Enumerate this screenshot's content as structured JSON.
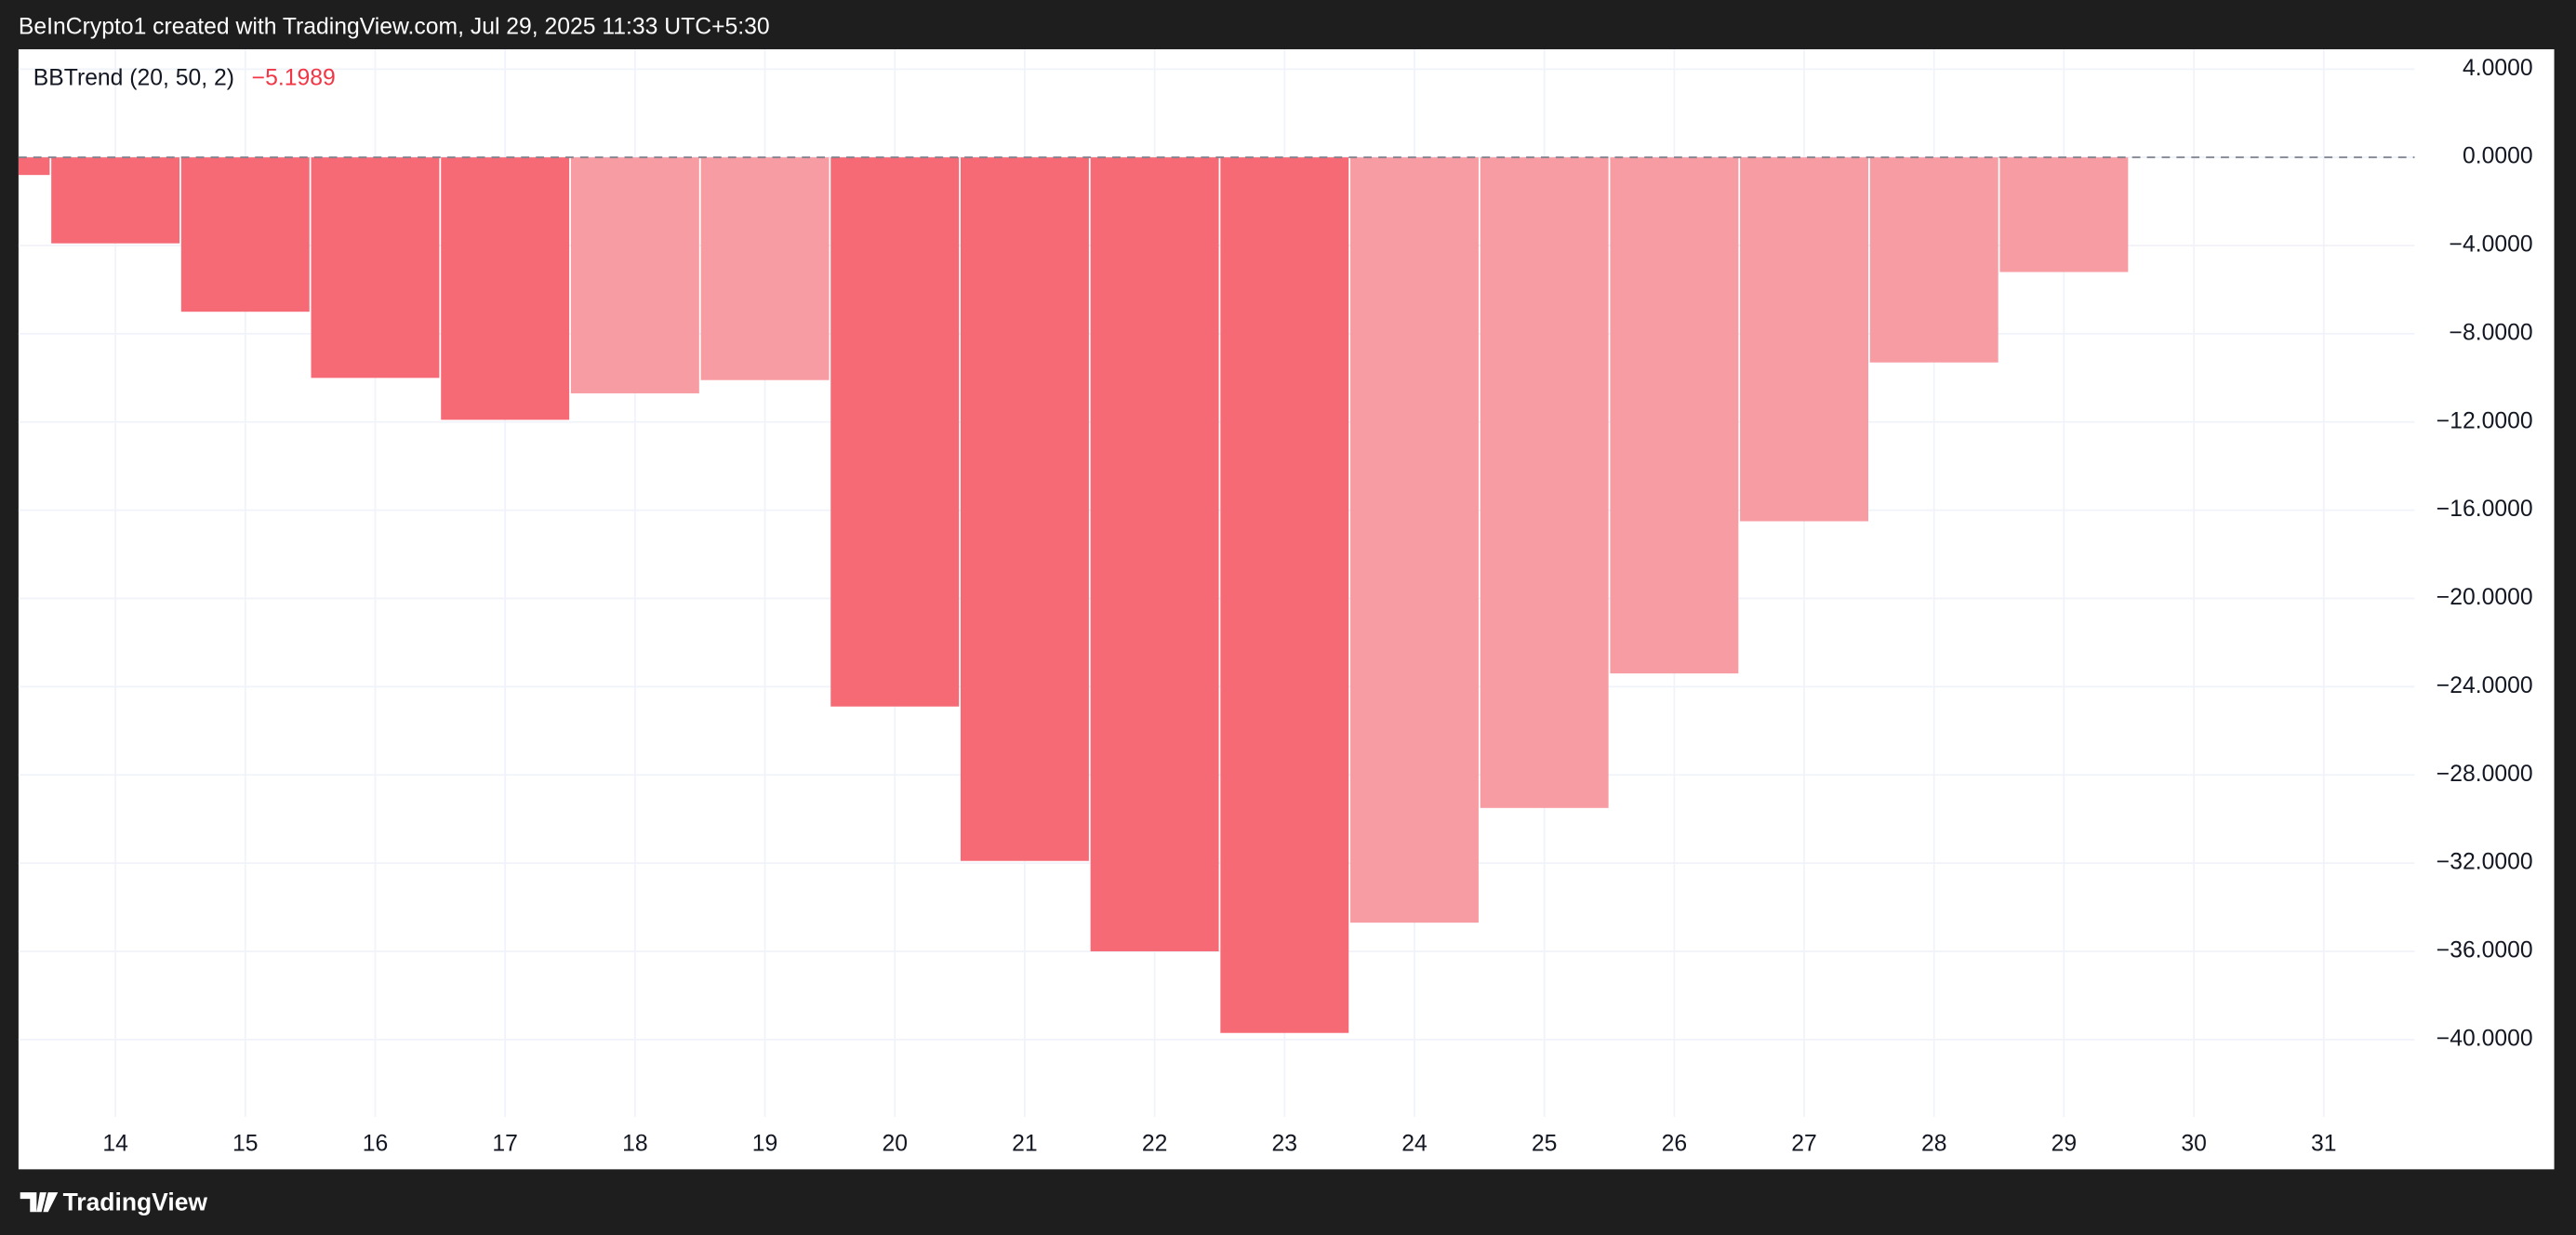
{
  "header": {
    "text": "BeInCrypto1 created with TradingView.com, Jul 29, 2025 11:33 UTC+5:30"
  },
  "footer": {
    "brand": "TradingView"
  },
  "chart_data": {
    "type": "bar",
    "indicator": "BBTrend (20, 50, 2)",
    "last_value_label": "−5.1989",
    "last_value_color": "#f23645",
    "categories": [
      null,
      "14",
      "15",
      "16",
      "17",
      "18",
      "19",
      "20",
      "21",
      "22",
      "23",
      "24",
      "25",
      "26",
      "27",
      "28",
      "29",
      "30",
      "31"
    ],
    "values": [
      -0.8,
      -3.9,
      -7.0,
      -10.0,
      -11.9,
      -10.7,
      -10.1,
      -24.9,
      -31.9,
      -36.0,
      -39.7,
      -34.7,
      -29.5,
      -23.4,
      -16.5,
      -9.3,
      -5.1989,
      null,
      null
    ],
    "colors": [
      "#f66a76",
      "#f66a76",
      "#f66a76",
      "#f66a76",
      "#f66a76",
      "#f89ca3",
      "#f89ca3",
      "#f66a76",
      "#f66a76",
      "#f66a76",
      "#f66a76",
      "#f89ca3",
      "#f89ca3",
      "#f89ca3",
      "#f89ca3",
      "#f89ca3",
      "#f89ca3",
      null,
      null
    ],
    "ylim": [
      -43.5,
      4.9
    ],
    "yticks": [
      {
        "value": 4,
        "label": "4.0000"
      },
      {
        "value": 0,
        "label": "0.0000"
      },
      {
        "value": -4,
        "label": "−4.0000"
      },
      {
        "value": -8,
        "label": "−8.0000"
      },
      {
        "value": -12,
        "label": "−12.0000"
      },
      {
        "value": -16,
        "label": "−16.0000"
      },
      {
        "value": -20,
        "label": "−20.0000"
      },
      {
        "value": -24,
        "label": "−24.0000"
      },
      {
        "value": -28,
        "label": "−28.0000"
      },
      {
        "value": -32,
        "label": "−32.0000"
      },
      {
        "value": -36,
        "label": "−36.0000"
      },
      {
        "value": -40,
        "label": "−40.0000"
      }
    ],
    "grid": true
  }
}
